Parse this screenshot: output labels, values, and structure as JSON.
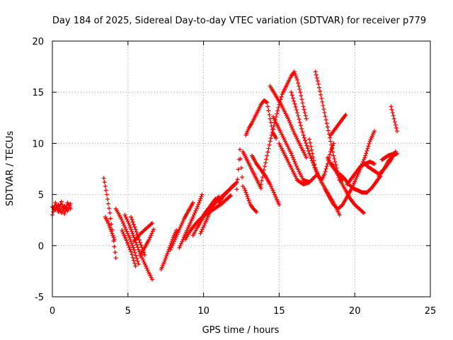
{
  "chart_data": {
    "type": "scatter",
    "title": "Day 184 of 2025, Sidereal Day-to-day VTEC variation (SDTVAR) for receiver p779",
    "xlabel": "GPS time / hours",
    "ylabel": "SDTVAR / TECUs",
    "xlim": [
      0,
      25
    ],
    "ylim": [
      -5,
      20
    ],
    "x_ticks": [
      0,
      5,
      10,
      15,
      20,
      25
    ],
    "y_ticks": [
      -5,
      0,
      5,
      10,
      15,
      20
    ],
    "grid": true,
    "marker": "plus",
    "marker_color": "#ff0000",
    "series": [
      {
        "x": [
          0.0,
          0.2,
          0.4,
          0.6,
          0.8,
          1.0,
          1.2
        ],
        "y": [
          3.8,
          3.5,
          4.0,
          3.2,
          3.9,
          3.4,
          4.1
        ]
      },
      {
        "x": [
          0.0,
          0.2,
          0.4,
          0.6,
          0.8,
          1.0,
          1.2
        ],
        "y": [
          3.0,
          4.2,
          3.3,
          4.3,
          3.1,
          4.2,
          3.6
        ]
      },
      {
        "x": [
          3.4,
          3.6,
          3.8,
          4.0,
          4.2
        ],
        "y": [
          6.6,
          5.0,
          3.2,
          1.0,
          -1.2
        ]
      },
      {
        "x": [
          3.5,
          3.7,
          3.9,
          4.1
        ],
        "y": [
          2.8,
          2.2,
          1.4,
          0.6
        ]
      },
      {
        "x": [
          4.2,
          4.5,
          4.8,
          5.1,
          5.4,
          5.7
        ],
        "y": [
          3.6,
          2.8,
          1.8,
          0.8,
          -0.4,
          -1.8
        ]
      },
      {
        "x": [
          4.8,
          5.1,
          5.4,
          5.7,
          6.0,
          6.3,
          6.6
        ],
        "y": [
          3.0,
          2.0,
          0.8,
          -0.4,
          -1.4,
          -2.4,
          -3.3
        ]
      },
      {
        "x": [
          4.6,
          4.9,
          5.2,
          5.5
        ],
        "y": [
          1.5,
          0.5,
          -0.6,
          -2.0
        ]
      },
      {
        "x": [
          5.2,
          5.5,
          5.8,
          6.1
        ],
        "y": [
          2.8,
          1.6,
          0.3,
          -0.9
        ]
      },
      {
        "x": [
          5.4,
          5.7,
          6.0,
          6.3,
          6.6
        ],
        "y": [
          0.4,
          1.0,
          1.4,
          1.8,
          2.2
        ]
      },
      {
        "x": [
          5.8,
          6.1,
          6.4,
          6.7
        ],
        "y": [
          -1.0,
          -0.2,
          0.6,
          1.6
        ]
      },
      {
        "x": [
          7.2,
          7.4,
          7.6,
          7.8,
          8.0,
          8.2
        ],
        "y": [
          -2.3,
          -1.6,
          -0.8,
          0.0,
          0.8,
          1.5
        ]
      },
      {
        "x": [
          7.8,
          8.1,
          8.4,
          8.7,
          9.0,
          9.3
        ],
        "y": [
          -0.4,
          0.6,
          1.6,
          2.6,
          3.4,
          4.2
        ]
      },
      {
        "x": [
          8.4,
          8.7,
          9.0,
          9.3,
          9.6,
          9.9
        ],
        "y": [
          -0.2,
          0.8,
          1.8,
          2.8,
          3.8,
          5.0
        ]
      },
      {
        "x": [
          8.8,
          9.1,
          9.4,
          9.7,
          10.0,
          10.3,
          10.6,
          10.9,
          11.2,
          11.5,
          11.8
        ],
        "y": [
          0.6,
          1.4,
          2.0,
          2.5,
          2.9,
          3.2,
          3.5,
          3.8,
          4.1,
          4.5,
          4.9
        ]
      },
      {
        "x": [
          9.3,
          9.6,
          9.9,
          10.2,
          10.5,
          10.8
        ],
        "y": [
          1.0,
          1.8,
          2.6,
          3.3,
          4.0,
          4.6
        ]
      },
      {
        "x": [
          9.8,
          10.1,
          10.4,
          10.7,
          11.0
        ],
        "y": [
          1.2,
          2.2,
          3.2,
          4.0,
          4.8
        ]
      },
      {
        "x": [
          10.0,
          10.3,
          10.6,
          10.9,
          11.2,
          11.5,
          11.8,
          12.1
        ],
        "y": [
          3.0,
          3.6,
          4.0,
          4.4,
          4.8,
          5.2,
          5.6,
          6.0
        ]
      },
      {
        "x": [
          11.0,
          11.3,
          11.6,
          11.9,
          12.2
        ],
        "y": [
          4.2,
          4.8,
          5.3,
          5.8,
          6.2
        ]
      },
      {
        "x": [
          12.2,
          12.4,
          12.6
        ],
        "y": [
          5.5,
          9.4,
          5.8
        ]
      },
      {
        "x": [
          12.7,
          12.9,
          13.1,
          13.3,
          13.5
        ],
        "y": [
          5.6,
          4.8,
          4.0,
          3.6,
          3.3
        ]
      },
      {
        "x": [
          12.8,
          13.0,
          13.2,
          13.4,
          13.6,
          13.8,
          14.0,
          14.2,
          14.4,
          14.6,
          14.8
        ],
        "y": [
          10.8,
          11.5,
          12.0,
          12.6,
          13.2,
          13.8,
          14.2,
          14.0,
          12.4,
          11.0,
          10.5
        ]
      },
      {
        "x": [
          12.6,
          12.8,
          13.0,
          13.2,
          13.4,
          13.6,
          13.8
        ],
        "y": [
          9.2,
          8.6,
          8.0,
          7.4,
          6.8,
          6.2,
          5.6
        ]
      },
      {
        "x": [
          13.2,
          13.5,
          13.8,
          14.1,
          14.4,
          14.7,
          15.0
        ],
        "y": [
          8.8,
          8.0,
          7.4,
          6.8,
          6.0,
          5.0,
          4.0
        ]
      },
      {
        "x": [
          13.8,
          14.0,
          14.2,
          14.4,
          14.6,
          14.8,
          15.0,
          15.2,
          15.4,
          15.6,
          15.8,
          16.0,
          16.2,
          16.4,
          16.6,
          16.8
        ],
        "y": [
          6.0,
          7.4,
          8.8,
          10.2,
          11.4,
          12.6,
          13.8,
          14.8,
          15.4,
          16.0,
          16.6,
          17.0,
          16.2,
          15.0,
          13.6,
          12.4
        ]
      },
      {
        "x": [
          14.4,
          14.8,
          15.2,
          15.6,
          16.0,
          16.4,
          16.8
        ],
        "y": [
          15.6,
          14.6,
          13.6,
          12.4,
          11.0,
          9.8,
          8.6
        ]
      },
      {
        "x": [
          14.6,
          15.0,
          15.4,
          15.8,
          16.2,
          16.6,
          17.0
        ],
        "y": [
          12.6,
          11.4,
          10.2,
          9.0,
          7.6,
          6.4,
          6.2
        ]
      },
      {
        "x": [
          15.0,
          15.4,
          15.8,
          16.2,
          16.6,
          17.0,
          17.4
        ],
        "y": [
          10.0,
          8.8,
          7.6,
          6.4,
          6.0,
          6.2,
          6.8
        ]
      },
      {
        "x": [
          15.8,
          16.2,
          16.6,
          17.0,
          17.4,
          17.8,
          18.2,
          18.6,
          19.0
        ],
        "y": [
          15.0,
          13.0,
          10.8,
          9.0,
          7.4,
          6.2,
          5.2,
          4.2,
          3.0
        ]
      },
      {
        "x": [
          17.0,
          17.2,
          17.4,
          17.6,
          17.8,
          18.0,
          18.2,
          18.4,
          18.6
        ],
        "y": [
          10.4,
          9.0,
          7.6,
          6.8,
          6.4,
          7.0,
          8.0,
          9.2,
          10.0
        ]
      },
      {
        "x": [
          17.4,
          17.6,
          17.8,
          18.0,
          18.2,
          18.4,
          18.6,
          18.8,
          19.0
        ],
        "y": [
          17.0,
          15.8,
          14.4,
          13.0,
          11.6,
          10.2,
          8.8,
          7.6,
          6.4
        ]
      },
      {
        "x": [
          18.2,
          18.4,
          18.6,
          18.8,
          19.0,
          19.2
        ],
        "y": [
          8.6,
          8.0,
          7.6,
          7.2,
          6.8,
          6.4
        ]
      },
      {
        "x": [
          18.4,
          18.6,
          18.8,
          19.0,
          19.2,
          19.4
        ],
        "y": [
          10.8,
          11.2,
          11.6,
          12.0,
          12.4,
          12.8
        ]
      },
      {
        "x": [
          18.0,
          18.3,
          18.6,
          18.9,
          19.2,
          19.5,
          19.8,
          20.1,
          20.4,
          20.7,
          21.0,
          21.3
        ],
        "y": [
          5.6,
          4.8,
          4.0,
          3.6,
          4.0,
          4.8,
          5.6,
          6.6,
          7.6,
          8.8,
          10.2,
          11.2
        ]
      },
      {
        "x": [
          18.5,
          18.8,
          19.1,
          19.4,
          19.7,
          20.0,
          20.3,
          20.6
        ],
        "y": [
          8.0,
          7.2,
          6.2,
          5.4,
          4.6,
          4.0,
          3.6,
          3.2
        ]
      },
      {
        "x": [
          19.0,
          19.3,
          19.6,
          19.9,
          20.2,
          20.5,
          20.8,
          21.1,
          21.4,
          21.7
        ],
        "y": [
          7.0,
          6.6,
          6.0,
          5.6,
          5.4,
          5.2,
          5.2,
          5.6,
          6.2,
          6.8
        ]
      },
      {
        "x": [
          19.5,
          19.8,
          20.1,
          20.4,
          20.7,
          21.0,
          21.3
        ],
        "y": [
          6.0,
          6.6,
          7.2,
          7.8,
          8.0,
          8.2,
          8.0
        ]
      },
      {
        "x": [
          20.8,
          21.2,
          21.6,
          22.0,
          22.4,
          22.7
        ],
        "y": [
          7.8,
          7.4,
          7.0,
          7.6,
          8.4,
          9.2
        ]
      },
      {
        "x": [
          21.6,
          21.9,
          22.2,
          22.5,
          22.8
        ],
        "y": [
          6.8,
          7.4,
          8.2,
          8.8,
          9.0
        ]
      },
      {
        "x": [
          22.4,
          22.6,
          22.8
        ],
        "y": [
          13.6,
          12.4,
          11.2
        ]
      },
      {
        "x": [
          21.8,
          22.2,
          22.6
        ],
        "y": [
          8.4,
          8.8,
          9.0
        ]
      }
    ]
  }
}
